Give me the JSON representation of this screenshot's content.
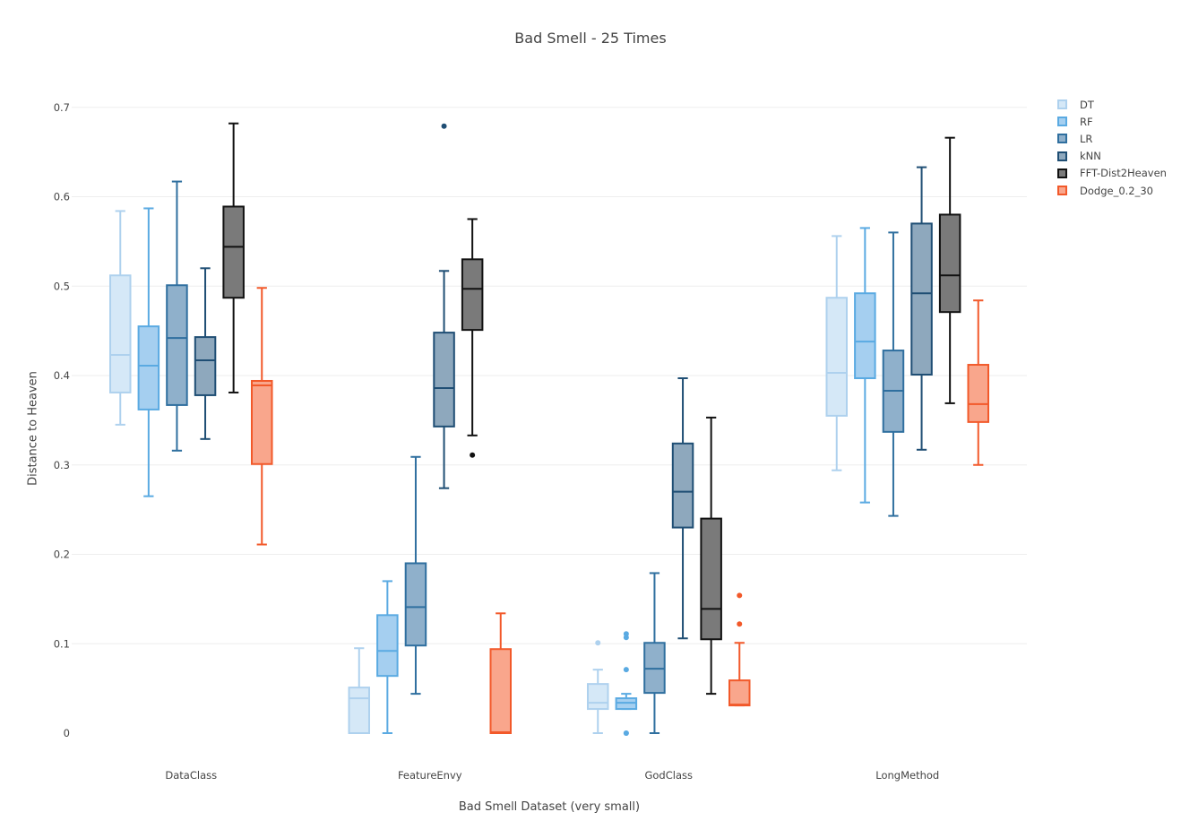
{
  "chart_data": {
    "type": "box",
    "title": "Bad Smell - 25 Times",
    "xlabel": "Bad Smell Dataset (very small)",
    "ylabel": "Distance to Heaven",
    "ylim": [
      -0.035,
      0.735
    ],
    "yticks": [
      0,
      0.1,
      0.2,
      0.3,
      0.4,
      0.5,
      0.6,
      0.7
    ],
    "ytick_labels": [
      "0",
      "0.1",
      "0.2",
      "0.3",
      "0.4",
      "0.5",
      "0.6",
      "0.7"
    ],
    "grid": true,
    "legend_position": "top-right",
    "categories": [
      "DataClass",
      "FeatureEnvy",
      "GodClass",
      "LongMethod"
    ],
    "series": [
      {
        "name": "DT",
        "line_color": "#aed1ee",
        "fill_color": "#d5e8f7",
        "boxes": [
          {
            "whisker_low": 0.345,
            "q1": 0.381,
            "median": 0.423,
            "q3": 0.512,
            "whisker_high": 0.584,
            "outliers": []
          },
          {
            "whisker_low": 0,
            "q1": 0,
            "median": 0.039,
            "q3": 0.051,
            "whisker_high": 0.095,
            "outliers": []
          },
          {
            "whisker_low": 0,
            "q1": 0.027,
            "median": 0.034,
            "q3": 0.055,
            "whisker_high": 0.071,
            "outliers": [
              0.101
            ]
          },
          {
            "whisker_low": 0.294,
            "q1": 0.355,
            "median": 0.403,
            "q3": 0.487,
            "whisker_high": 0.556,
            "outliers": []
          }
        ]
      },
      {
        "name": "RF",
        "line_color": "#5aaae2",
        "fill_color": "#a5cff0",
        "boxes": [
          {
            "whisker_low": 0.265,
            "q1": 0.362,
            "median": 0.411,
            "q3": 0.455,
            "whisker_high": 0.587,
            "outliers": []
          },
          {
            "whisker_low": 0,
            "q1": 0.064,
            "median": 0.092,
            "q3": 0.132,
            "whisker_high": 0.17,
            "outliers": []
          },
          {
            "whisker_low": 0.027,
            "q1": 0.027,
            "median": 0.034,
            "q3": 0.039,
            "whisker_high": 0.044,
            "outliers": [
              0.111,
              0.107,
              0.071,
              0,
              0
            ]
          },
          {
            "whisker_low": 0.258,
            "q1": 0.397,
            "median": 0.438,
            "q3": 0.492,
            "whisker_high": 0.565,
            "outliers": []
          }
        ]
      },
      {
        "name": "LR",
        "line_color": "#2f6f9f",
        "fill_color": "#8fb0cb",
        "boxes": [
          {
            "whisker_low": 0.316,
            "q1": 0.367,
            "median": 0.442,
            "q3": 0.501,
            "whisker_high": 0.617,
            "outliers": []
          },
          {
            "whisker_low": 0.044,
            "q1": 0.098,
            "median": 0.141,
            "q3": 0.19,
            "whisker_high": 0.309,
            "outliers": []
          },
          {
            "whisker_low": 0,
            "q1": 0.045,
            "median": 0.072,
            "q3": 0.101,
            "whisker_high": 0.179,
            "outliers": []
          },
          {
            "whisker_low": 0.243,
            "q1": 0.337,
            "median": 0.383,
            "q3": 0.428,
            "whisker_high": 0.56,
            "outliers": []
          }
        ]
      },
      {
        "name": "kNN",
        "line_color": "#1f4e74",
        "fill_color": "#8ea8bd",
        "boxes": [
          {
            "whisker_low": 0.329,
            "q1": 0.378,
            "median": 0.417,
            "q3": 0.443,
            "whisker_high": 0.52,
            "outliers": []
          },
          {
            "whisker_low": 0.274,
            "q1": 0.343,
            "median": 0.386,
            "q3": 0.448,
            "whisker_high": 0.517,
            "outliers": [
              0.679
            ]
          },
          {
            "whisker_low": 0.106,
            "q1": 0.23,
            "median": 0.27,
            "q3": 0.324,
            "whisker_high": 0.397,
            "outliers": []
          },
          {
            "whisker_low": 0.317,
            "q1": 0.401,
            "median": 0.492,
            "q3": 0.57,
            "whisker_high": 0.633,
            "outliers": []
          }
        ]
      },
      {
        "name": "FFT-Dist2Heaven",
        "line_color": "#111111",
        "fill_color": "#7a7a7a",
        "boxes": [
          {
            "whisker_low": 0.381,
            "q1": 0.487,
            "median": 0.544,
            "q3": 0.589,
            "whisker_high": 0.682,
            "outliers": []
          },
          {
            "whisker_low": 0.333,
            "q1": 0.451,
            "median": 0.497,
            "q3": 0.53,
            "whisker_high": 0.575,
            "outliers": [
              0.311
            ]
          },
          {
            "whisker_low": 0.044,
            "q1": 0.105,
            "median": 0.139,
            "q3": 0.24,
            "whisker_high": 0.353,
            "outliers": []
          },
          {
            "whisker_low": 0.369,
            "q1": 0.471,
            "median": 0.512,
            "q3": 0.58,
            "whisker_high": 0.666,
            "outliers": []
          }
        ]
      },
      {
        "name": "Dodge_0.2_30",
        "line_color": "#f2592a",
        "fill_color": "#f9a68c",
        "boxes": [
          {
            "whisker_low": 0.211,
            "q1": 0.301,
            "median": 0.389,
            "q3": 0.394,
            "whisker_high": 0.498,
            "outliers": []
          },
          {
            "whisker_low": 0,
            "q1": 0,
            "median": 0.001,
            "q3": 0.094,
            "whisker_high": 0.134,
            "outliers": []
          },
          {
            "whisker_low": 0.031,
            "q1": 0.031,
            "median": 0.032,
            "q3": 0.059,
            "whisker_high": 0.101,
            "outliers": [
              0.154,
              0.122
            ]
          },
          {
            "whisker_low": 0.3,
            "q1": 0.348,
            "median": 0.368,
            "q3": 0.412,
            "whisker_high": 0.484,
            "outliers": []
          }
        ]
      }
    ]
  }
}
